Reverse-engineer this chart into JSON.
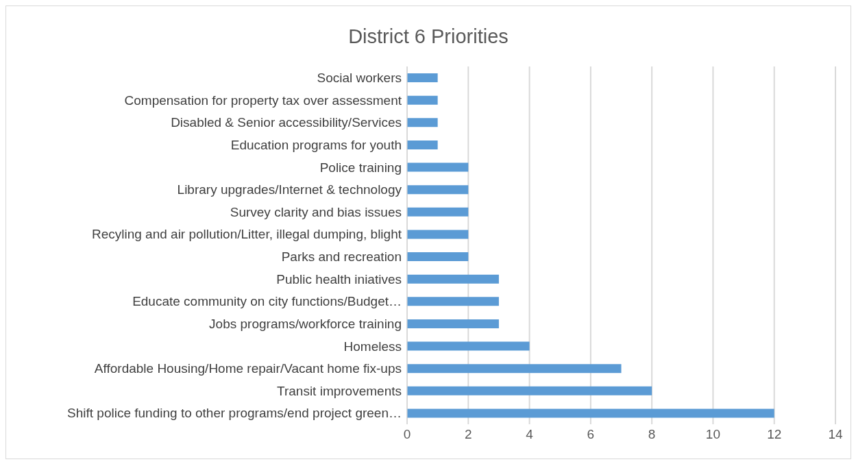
{
  "chart_data": {
    "type": "bar",
    "title": "District 6 Priorities",
    "orientation": "horizontal",
    "categories": [
      "Social workers",
      "Compensation for property tax over assessment",
      "Disabled & Senior accessibility/Services",
      "Education programs for youth",
      "Police training",
      "Library upgrades/Internet & technology",
      "Survey clarity and bias issues",
      "Recyling and air pollution/Litter, illegal dumping, blight",
      "Parks and recreation",
      "Public health iniatives",
      "Educate community on city functions/Budget…",
      "Jobs programs/workforce training",
      "Homeless",
      "Affordable Housing/Home repair/Vacant home fix-ups",
      "Transit improvements",
      "Shift police funding to other programs/end project green…"
    ],
    "values": [
      1,
      1,
      1,
      1,
      2,
      2,
      2,
      2,
      2,
      3,
      3,
      3,
      4,
      7,
      8,
      12
    ],
    "color": "#5b9bd5",
    "xlim": [
      0,
      14
    ],
    "xticks": [
      0,
      2,
      4,
      6,
      8,
      10,
      12,
      14
    ],
    "grid": "x"
  }
}
